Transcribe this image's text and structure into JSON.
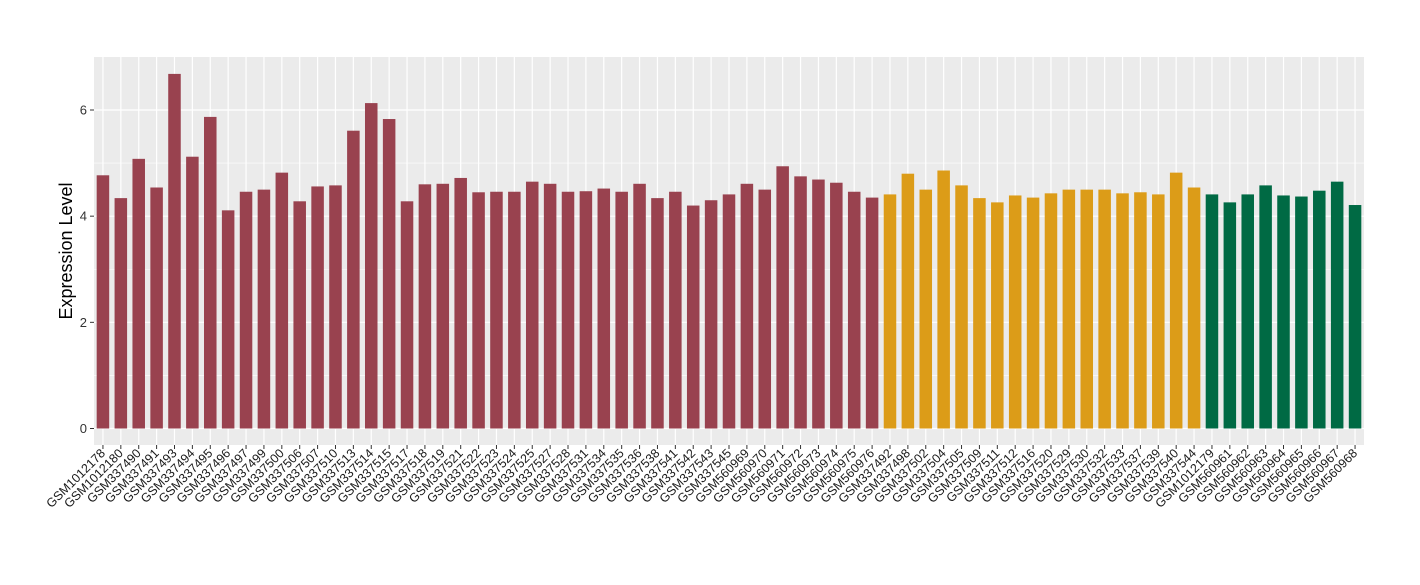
{
  "chart_data": {
    "type": "bar",
    "title": "",
    "xlabel": "",
    "ylabel": "Expression Level",
    "ylim": [
      0,
      7
    ],
    "yticks": [
      0,
      2,
      4,
      6
    ],
    "grid": true,
    "legend": "none",
    "colors": {
      "group1": "#99424f",
      "group2": "#dc9c18",
      "group3": "#006a44",
      "panel": "#ebebeb",
      "gridline": "#ffffff"
    },
    "categories": [
      "GSM1012178",
      "GSM1012180",
      "GSM337490",
      "GSM337491",
      "GSM337493",
      "GSM337494",
      "GSM337495",
      "GSM337496",
      "GSM337497",
      "GSM337499",
      "GSM337500",
      "GSM337506",
      "GSM337507",
      "GSM337510",
      "GSM337513",
      "GSM337514",
      "GSM337515",
      "GSM337517",
      "GSM337518",
      "GSM337519",
      "GSM337521",
      "GSM337522",
      "GSM337523",
      "GSM337524",
      "GSM337525",
      "GSM337527",
      "GSM337528",
      "GSM337531",
      "GSM337534",
      "GSM337535",
      "GSM337536",
      "GSM337538",
      "GSM337541",
      "GSM337542",
      "GSM337543",
      "GSM337545",
      "GSM560969",
      "GSM560970",
      "GSM560971",
      "GSM560972",
      "GSM560973",
      "GSM560974",
      "GSM560975",
      "GSM560976",
      "GSM337492",
      "GSM337498",
      "GSM337502",
      "GSM337504",
      "GSM337505",
      "GSM337509",
      "GSM337511",
      "GSM337512",
      "GSM337516",
      "GSM337520",
      "GSM337529",
      "GSM337530",
      "GSM337532",
      "GSM337533",
      "GSM337537",
      "GSM337539",
      "GSM337540",
      "GSM337544",
      "GSM1012179",
      "GSM560961",
      "GSM560962",
      "GSM560963",
      "GSM560964",
      "GSM560965",
      "GSM560966",
      "GSM560967",
      "GSM560968"
    ],
    "values": [
      4.77,
      4.34,
      5.08,
      4.54,
      6.68,
      5.12,
      5.87,
      4.11,
      4.46,
      4.5,
      4.82,
      4.28,
      4.56,
      4.58,
      5.61,
      6.13,
      5.83,
      4.28,
      4.6,
      4.61,
      4.72,
      4.45,
      4.46,
      4.46,
      4.65,
      4.61,
      4.46,
      4.47,
      4.52,
      4.46,
      4.61,
      4.34,
      4.46,
      4.2,
      4.3,
      4.41,
      4.61,
      4.5,
      4.94,
      4.75,
      4.69,
      4.63,
      4.46,
      4.35,
      4.41,
      4.8,
      4.5,
      4.86,
      4.58,
      4.34,
      4.26,
      4.39,
      4.35,
      4.43,
      4.5,
      4.5,
      4.5,
      4.43,
      4.45,
      4.41,
      4.82,
      4.54,
      4.41,
      4.26,
      4.41,
      4.58,
      4.39,
      4.37,
      4.48,
      4.65,
      4.21
    ],
    "groups": [
      1,
      1,
      1,
      1,
      1,
      1,
      1,
      1,
      1,
      1,
      1,
      1,
      1,
      1,
      1,
      1,
      1,
      1,
      1,
      1,
      1,
      1,
      1,
      1,
      1,
      1,
      1,
      1,
      1,
      1,
      1,
      1,
      1,
      1,
      1,
      1,
      1,
      1,
      1,
      1,
      1,
      1,
      1,
      1,
      2,
      2,
      2,
      2,
      2,
      2,
      2,
      2,
      2,
      2,
      2,
      2,
      2,
      2,
      2,
      2,
      2,
      2,
      3,
      3,
      3,
      3,
      3,
      3,
      3,
      3,
      3
    ]
  }
}
